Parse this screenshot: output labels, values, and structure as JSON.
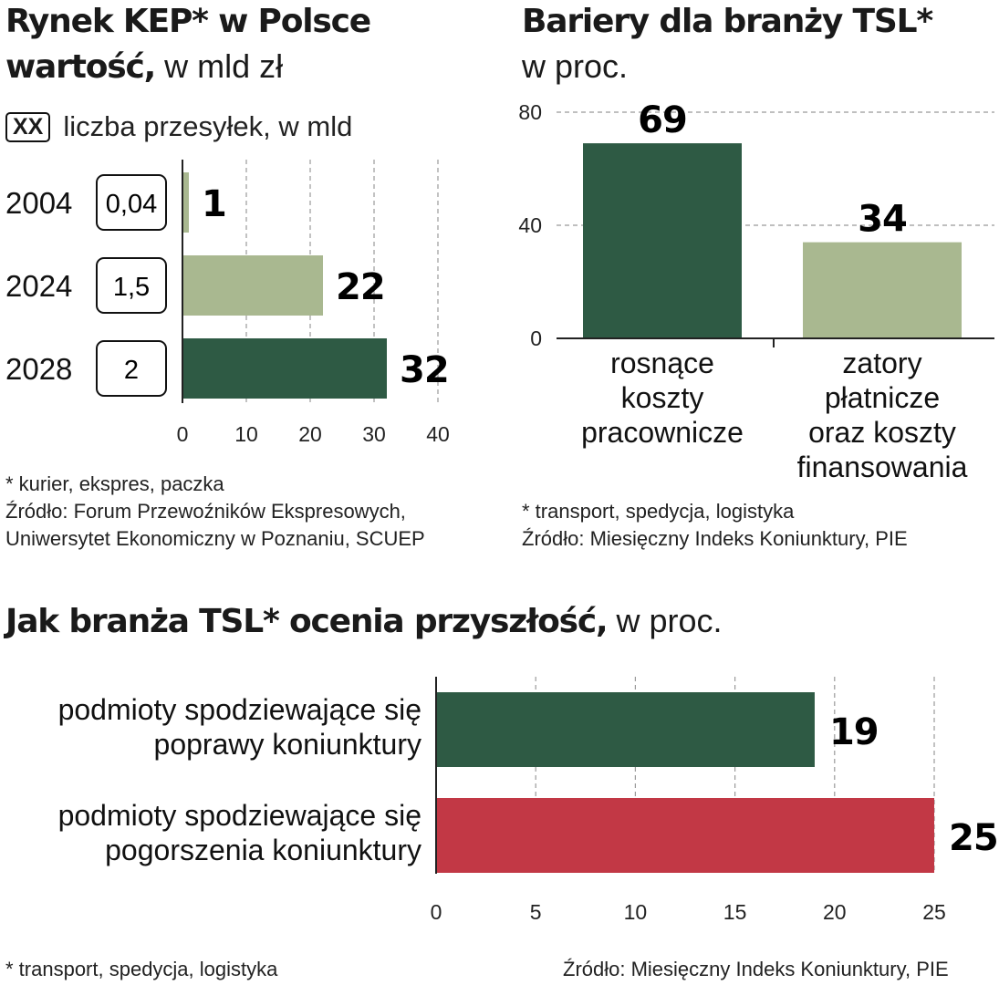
{
  "colors": {
    "dark_green": "#2e5a44",
    "light_green": "#a9b890",
    "red": "#c23845",
    "grid": "#999999",
    "axis": "#222222"
  },
  "kep": {
    "title_bold": "Rynek KEP* w Polsce",
    "title_bold2": "wartość,",
    "title_light": " w mld zł",
    "legend_box": "XX",
    "legend_text": "liczba przesyłek, w mld",
    "footnote": "* kurier, ekspres, paczka",
    "source_line1": "Źródło: Forum Przewoźników Ekspresowych,",
    "source_line2": "Uniwersytet Ekonomiczny w Poznaniu, SCUEP"
  },
  "barriers": {
    "title_bold": "Bariery dla branży TSL*",
    "title_light": "w proc.",
    "footnote": "* transport, spedycja, logistyka",
    "source": "Źródło: Miesięczny Indeks Koniunktury, PIE"
  },
  "outlook": {
    "title_bold": "Jak branża TSL* ocenia przyszłość,",
    "title_light": " w proc.",
    "footnote": "* transport, spedycja, logistyka",
    "source": "Źródło: Miesięczny Indeks Koniunktury, PIE"
  },
  "chart_data": [
    {
      "type": "bar",
      "orientation": "horizontal",
      "title": "Rynek KEP* w Polsce wartość, w mld zł",
      "categories": [
        "2004",
        "2024",
        "2028"
      ],
      "values": [
        1,
        22,
        32
      ],
      "value_labels": [
        "1",
        "22",
        "32"
      ],
      "shipments": [
        "0,04",
        "1,5",
        "2"
      ],
      "bar_colors": [
        "#a9b890",
        "#a9b890",
        "#2e5a44"
      ],
      "xlim": [
        0,
        40
      ],
      "xticks": [
        "0",
        "10",
        "20",
        "30",
        "40"
      ],
      "grid": true
    },
    {
      "type": "bar",
      "orientation": "vertical",
      "title": "Bariery dla branży TSL* w proc.",
      "categories": [
        [
          "rosnące",
          "koszty",
          "pracownicze"
        ],
        [
          "zatory",
          "płatnicze",
          "oraz koszty",
          "finansowania"
        ]
      ],
      "values": [
        69,
        34
      ],
      "value_labels": [
        "69",
        "34"
      ],
      "bar_colors": [
        "#2e5a44",
        "#a9b890"
      ],
      "ylim": [
        0,
        80
      ],
      "yticks": [
        "0",
        "40",
        "80"
      ],
      "grid": true
    },
    {
      "type": "bar",
      "orientation": "horizontal",
      "title": "Jak branża TSL* ocenia przyszłość, w proc.",
      "categories": [
        [
          "podmioty spodziewające się",
          "poprawy koniunktury"
        ],
        [
          "podmioty spodziewające się",
          "pogorszenia koniunktury"
        ]
      ],
      "values": [
        19,
        25
      ],
      "value_labels": [
        "19",
        "25"
      ],
      "bar_colors": [
        "#2e5a44",
        "#c23845"
      ],
      "xlim": [
        0,
        25
      ],
      "xticks": [
        "0",
        "5",
        "10",
        "15",
        "20",
        "25"
      ],
      "grid": true
    }
  ]
}
